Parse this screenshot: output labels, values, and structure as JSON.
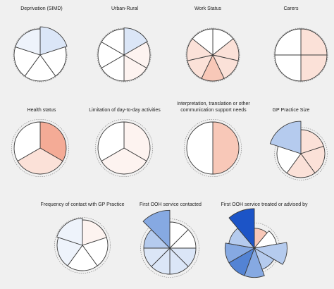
{
  "colors": {
    "background": "#f0f0f0",
    "outline": "#3a3a3a",
    "reference_ring": "#8a8a8a",
    "neutral": "#ffffff",
    "blue_scale": [
      "#eef3fb",
      "#dbe6f7",
      "#b5cbee",
      "#86a9e2",
      "#5383d4",
      "#1c54c7"
    ],
    "red_scale": [
      "#fdf3f0",
      "#fbe1d8",
      "#f8c8b8",
      "#f4ab96"
    ]
  },
  "chart_data": [
    {
      "type": "polar-area",
      "title": "Deprivation (SIMD)",
      "segments": [
        {
          "value": 1.08,
          "color": "blue1"
        },
        {
          "value": 1.0,
          "color": "neutral"
        },
        {
          "value": 1.0,
          "color": "neutral"
        },
        {
          "value": 1.0,
          "color": "neutral"
        },
        {
          "value": 1.0,
          "color": "blue0"
        }
      ],
      "reference_ring": 1.03
    },
    {
      "type": "polar-area",
      "title": "Urban-Rural",
      "segments": [
        {
          "value": 1.04,
          "color": "blue1"
        },
        {
          "value": 1.0,
          "color": "red0"
        },
        {
          "value": 1.0,
          "color": "red0"
        },
        {
          "value": 1.0,
          "color": "neutral"
        },
        {
          "value": 1.0,
          "color": "neutral"
        },
        {
          "value": 1.0,
          "color": "neutral"
        }
      ],
      "reference_ring": 1.03
    },
    {
      "type": "polar-area",
      "title": "Work Status",
      "segments": [
        {
          "value": 1.0,
          "color": "neutral"
        },
        {
          "value": 1.0,
          "color": "red1"
        },
        {
          "value": 1.0,
          "color": "red1"
        },
        {
          "value": 1.0,
          "color": "red2"
        },
        {
          "value": 1.0,
          "color": "red1"
        },
        {
          "value": 1.0,
          "color": "red1"
        },
        {
          "value": 1.0,
          "color": "neutral"
        }
      ],
      "reference_ring": 1.03
    },
    {
      "type": "polar-area",
      "title": "Carers",
      "segments": [
        {
          "value": 1.0,
          "color": "red1"
        },
        {
          "value": 1.0,
          "color": "red1"
        },
        {
          "value": 1.0,
          "color": "neutral"
        },
        {
          "value": 1.0,
          "color": "neutral"
        }
      ],
      "reference_ring": 1.03
    },
    {
      "type": "polar-area",
      "title": "Health status",
      "segments": [
        {
          "value": 1.0,
          "color": "red3"
        },
        {
          "value": 1.0,
          "color": "red1"
        },
        {
          "value": 1.0,
          "color": "neutral"
        }
      ],
      "reference_ring": 1.1
    },
    {
      "type": "polar-area",
      "title": "Limitation of day-to-day activities",
      "segments": [
        {
          "value": 1.0,
          "color": "red0"
        },
        {
          "value": 1.0,
          "color": "red0"
        },
        {
          "value": 1.0,
          "color": "neutral"
        }
      ],
      "reference_ring": 1.1
    },
    {
      "type": "polar-area",
      "title": "Interpretation, translation or other communication support needs",
      "segments": [
        {
          "value": 1.0,
          "color": "red2"
        },
        {
          "value": 1.0,
          "color": "neutral"
        }
      ],
      "reference_ring": 1.1
    },
    {
      "type": "polar-area",
      "title": "GP Practice Size",
      "segments": [
        {
          "value": 1.0,
          "color": "red1"
        },
        {
          "value": 1.0,
          "color": "red1"
        },
        {
          "value": 1.0,
          "color": "red1"
        },
        {
          "value": 1.0,
          "color": "neutral"
        },
        {
          "value": 1.35,
          "color": "blue2"
        }
      ],
      "reference_ring": 1.1
    },
    {
      "type": "polar-area",
      "title": "Frequency of contact with GP Practice",
      "segments": [
        {
          "value": 1.0,
          "color": "red0"
        },
        {
          "value": 1.0,
          "color": "neutral"
        },
        {
          "value": 1.0,
          "color": "neutral"
        },
        {
          "value": 1.0,
          "color": "blue0"
        },
        {
          "value": 1.06,
          "color": "blue0"
        }
      ],
      "reference_ring": 1.1
    },
    {
      "type": "polar-area",
      "title": "First OOH service contacted",
      "segments": [
        {
          "value": 1.0,
          "color": "neutral"
        },
        {
          "value": 1.0,
          "color": "neutral"
        },
        {
          "value": 1.0,
          "color": "blue1"
        },
        {
          "value": 1.0,
          "color": "blue1"
        },
        {
          "value": 1.0,
          "color": "blue1"
        },
        {
          "value": 1.0,
          "color": "blue1"
        },
        {
          "value": 1.0,
          "color": "blue2"
        },
        {
          "value": 1.45,
          "color": "blue3"
        }
      ],
      "reference_ring": 1.12
    },
    {
      "type": "polar-area",
      "title": "First OOH service treated or advised by",
      "segments": [
        {
          "value": 0.88,
          "color": "red2"
        },
        {
          "value": 1.0,
          "color": "neutral"
        },
        {
          "value": 1.45,
          "color": "blue2"
        },
        {
          "value": 1.0,
          "color": "blue2"
        },
        {
          "value": 1.3,
          "color": "blue3"
        },
        {
          "value": 1.3,
          "color": "blue4"
        },
        {
          "value": 1.3,
          "color": "blue3"
        },
        {
          "value": 1.15,
          "color": "blue2"
        },
        {
          "value": 1.75,
          "color": "blue5"
        }
      ],
      "reference_ring": 1.12
    }
  ]
}
